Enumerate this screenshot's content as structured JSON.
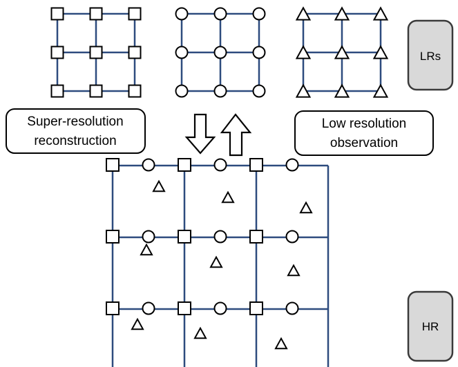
{
  "colors": {
    "grid_line": "#2d4b7e",
    "marker_stroke": "#000000",
    "marker_fill": "#ffffff",
    "box_fill": "#d9d9d9",
    "box_stroke": "#444444",
    "label_box_stroke": "#000000",
    "arrow_stroke": "#000000"
  },
  "labels": {
    "sr_reconstruction_line1": "Super-resolution",
    "sr_reconstruction_line2": "reconstruction",
    "lr_observation_line1": "Low resolution",
    "lr_observation_line2": "observation",
    "lrs": "LRs",
    "hr": "HR"
  },
  "lr_grids": [
    {
      "name": "lr-grid-square",
      "marker": "square"
    },
    {
      "name": "lr-grid-circle",
      "marker": "circle"
    },
    {
      "name": "lr-grid-triangle",
      "marker": "triangle"
    }
  ],
  "hr_grid": {
    "cells": 3,
    "markers_per_row": [
      "square",
      "circle",
      "square",
      "circle",
      "square",
      "circle"
    ],
    "triangles_per_cell": 1
  },
  "arrows": [
    {
      "name": "down-arrow",
      "direction": "down"
    },
    {
      "name": "up-arrow",
      "direction": "up"
    }
  ]
}
